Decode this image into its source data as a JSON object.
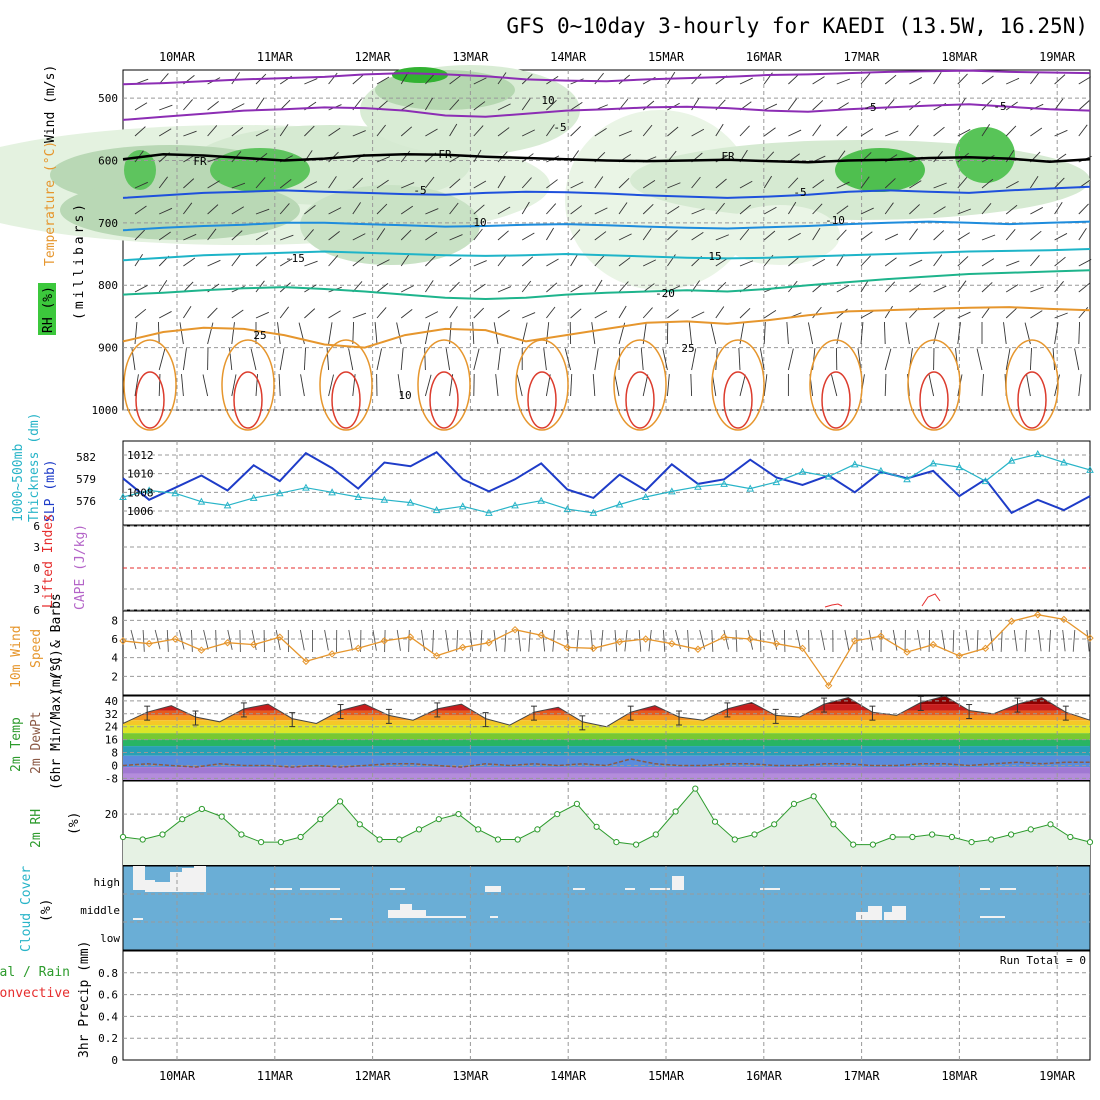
{
  "title": "GFS 0~10day 3-hourly for KAEDI (13.5W, 16.25N)",
  "dates": [
    "10MAR",
    "11MAR",
    "12MAR",
    "13MAR",
    "14MAR",
    "15MAR",
    "16MAR",
    "17MAR",
    "18MAR",
    "19MAR"
  ],
  "colors": {
    "rh_green": "#3cc83c",
    "slp": "#1e3cc8",
    "thickness": "#28b4c8",
    "wind10": "#e6962d",
    "rh2m": "#2d9b2d",
    "cloud_bg": "#6aaed6",
    "lifted": "#e62d2d",
    "cape": "#b464c8",
    "dewpt": "#8c5a46"
  },
  "panel_labels": {
    "upper_air": {
      "rh": "RH (%)",
      "temp": "Temperature (°C)",
      "wind": "Wind (m/s)",
      "units": "(millibars)"
    },
    "slp": {
      "thick": "1000~500mb",
      "thick2": "Thickness (dm)",
      "slp": "SLP (mb)"
    },
    "stability": {
      "li": "Lifted Index",
      "cape": "CAPE (J/kg)"
    },
    "wind10": {
      "l1": "10m Wind",
      "l2": "Speed",
      "l3": "(m/s) & Barbs"
    },
    "temp2m": {
      "l1": "2m Temp",
      "l2": "2m DewPt",
      "l3": "(6hr Min/Max) (°C)"
    },
    "rh2m": {
      "l1": "2m RH",
      "l2": "(%)"
    },
    "cloud": {
      "l1": "Cloud Cover",
      "l2": "(%)",
      "high": "high",
      "middle": "middle",
      "low": "low"
    },
    "precip": {
      "l1": "tal / Rain",
      "l2": "Convective",
      "l3": "3hr Precip (mm)",
      "run_total": "Run Total = 0"
    }
  },
  "chart_data": [
    {
      "type": "line",
      "title": "Upper air cross-section",
      "ylabel": "millibars",
      "yticks": [
        500,
        600,
        700,
        800,
        900,
        1000
      ],
      "ylim": [
        1000,
        455
      ],
      "isotherm_labels": [
        "10",
        "-5",
        "-5",
        "FR",
        "FR",
        "FR",
        "-5",
        "-5",
        "10",
        "-10",
        "-15",
        "15",
        "-20",
        "25",
        "25",
        "10",
        "-5"
      ],
      "isotherms": [
        {
          "t": -10,
          "p": [
            478,
            476,
            473,
            470,
            468,
            466,
            462,
            460,
            462,
            465,
            470,
            472,
            473,
            470,
            468,
            466,
            463,
            462,
            460,
            458,
            457,
            456,
            458,
            459,
            460
          ]
        },
        {
          "t": -5,
          "p": [
            535,
            530,
            525,
            520,
            518,
            515,
            516,
            520,
            528,
            530,
            525,
            520,
            518,
            515,
            514,
            516,
            520,
            522,
            518,
            515,
            512,
            510,
            514,
            518,
            520
          ]
        },
        {
          "t": 0,
          "p": [
            598,
            590,
            592,
            596,
            600,
            597,
            592,
            590,
            591,
            594,
            596,
            598,
            600,
            601,
            600,
            599,
            601,
            603,
            600,
            599,
            596,
            595,
            597,
            602,
            598
          ]
        },
        {
          "t": 5,
          "p": [
            660,
            656,
            652,
            650,
            648,
            650,
            652,
            654,
            655,
            652,
            650,
            651,
            653,
            656,
            658,
            660,
            658,
            655,
            650,
            648,
            650,
            652,
            648,
            645,
            642
          ]
        },
        {
          "t": 10,
          "p": [
            712,
            708,
            705,
            703,
            700,
            700,
            702,
            704,
            706,
            705,
            703,
            702,
            704,
            706,
            708,
            709,
            707,
            705,
            702,
            700,
            698,
            700,
            702,
            700,
            698
          ]
        },
        {
          "t": 15,
          "p": [
            760,
            756,
            752,
            750,
            748,
            746,
            748,
            750,
            752,
            753,
            752,
            750,
            752,
            754,
            756,
            757,
            756,
            754,
            752,
            750,
            748,
            746,
            745,
            744,
            742
          ]
        },
        {
          "t": 20,
          "p": [
            815,
            812,
            808,
            805,
            803,
            806,
            810,
            815,
            820,
            822,
            820,
            815,
            812,
            810,
            808,
            810,
            806,
            800,
            795,
            790,
            786,
            782,
            780,
            778,
            776
          ]
        },
        {
          "t": 25,
          "p": [
            890,
            875,
            868,
            870,
            880,
            895,
            900,
            880,
            870,
            872,
            890,
            880,
            870,
            860,
            858,
            862,
            856,
            848,
            842,
            840,
            838,
            836,
            835,
            838,
            840
          ]
        }
      ]
    },
    {
      "type": "line",
      "title": "SLP and 1000-500mb Thickness",
      "yticks_slp": [
        1006,
        1008,
        1010,
        1012
      ],
      "yticks_thick": [
        576,
        579,
        582
      ],
      "ylim_slp": [
        1004.5,
        1013.5
      ],
      "series": [
        {
          "name": "SLP (mb)",
          "values": [
            1009.5,
            1007.2,
            1008.5,
            1009.8,
            1008.2,
            1010.9,
            1009.2,
            1012.2,
            1010.6,
            1008.4,
            1011.2,
            1010.8,
            1012.3,
            1009.4,
            1008.1,
            1009.4,
            1011.1,
            1008.3,
            1007.4,
            1009.9,
            1008.2,
            1011.0,
            1008.9,
            1009.4,
            1011.5,
            1009.6,
            1008.8,
            1009.8,
            1008.0,
            1010.2,
            1009.5,
            1010.3,
            1007.6,
            1009.4,
            1005.8,
            1007.2,
            1006.1,
            1007.6
          ]
        },
        {
          "name": "1000~500mb Thickness (dm)",
          "values": [
            1007.5,
            1008.2,
            1007.9,
            1007.0,
            1006.6,
            1007.4,
            1007.9,
            1008.5,
            1008.0,
            1007.5,
            1007.2,
            1006.9,
            1006.1,
            1006.5,
            1005.8,
            1006.6,
            1007.1,
            1006.2,
            1005.8,
            1006.7,
            1007.5,
            1008.1,
            1008.6,
            1008.9,
            1008.4,
            1009.1,
            1010.2,
            1009.7,
            1011.0,
            1010.3,
            1009.4,
            1011.1,
            1010.7,
            1009.2,
            1011.4,
            1012.1,
            1011.2,
            1010.4
          ]
        }
      ]
    },
    {
      "type": "line",
      "title": "Lifted Index and CAPE",
      "yticks": [
        6,
        3,
        0,
        -3,
        -6
      ],
      "ylim": [
        6,
        -6
      ],
      "series": [
        {
          "name": "Lifted Index",
          "values": []
        },
        {
          "name": "CAPE (J/kg)",
          "values": []
        }
      ]
    },
    {
      "type": "line",
      "title": "10m Wind Speed",
      "ylabel": "(m/s)",
      "yticks": [
        2,
        4,
        6,
        8
      ],
      "ylim": [
        0,
        9
      ],
      "series": [
        {
          "name": "10m Wind Speed",
          "values": [
            5.8,
            5.5,
            6.0,
            4.8,
            5.6,
            5.4,
            6.2,
            3.6,
            4.4,
            5.0,
            5.8,
            6.2,
            4.2,
            5.1,
            5.6,
            7.0,
            6.4,
            5.1,
            5.0,
            5.7,
            6.0,
            5.5,
            4.9,
            6.2,
            6.0,
            5.5,
            5.0,
            1.0,
            5.8,
            6.3,
            4.6,
            5.4,
            4.2,
            5.0,
            7.9,
            8.6,
            8.1,
            6.1
          ]
        }
      ]
    },
    {
      "type": "area",
      "title": "2m Temp and 2m DewPt",
      "ylabel": "(°C)",
      "yticks": [
        -8,
        0,
        8,
        16,
        24,
        32,
        40
      ],
      "ylim": [
        -9,
        43
      ],
      "series": [
        {
          "name": "2m Temp",
          "values": [
            26,
            33,
            37,
            30,
            27,
            35,
            38,
            29,
            26,
            34,
            38,
            31,
            28,
            35,
            38,
            29,
            25,
            33,
            36,
            27,
            24,
            33,
            37,
            30,
            28,
            35,
            39,
            31,
            30,
            38,
            42,
            33,
            31,
            39,
            43,
            34,
            32,
            38,
            42,
            33,
            28
          ]
        },
        {
          "name": "2m DewPt",
          "values": [
            0,
            1,
            0,
            -1,
            1,
            0,
            0,
            -1,
            0,
            -1,
            0,
            1,
            1,
            0,
            -1,
            1,
            0,
            1,
            0,
            1,
            0,
            4,
            1,
            0,
            0,
            1,
            1,
            0,
            0,
            1,
            1,
            0,
            0,
            1,
            1,
            0,
            1,
            2,
            1,
            2,
            2
          ]
        }
      ]
    },
    {
      "type": "area",
      "title": "2m RH",
      "ylabel": "(%)",
      "yticks": [
        20
      ],
      "ylim": [
        0,
        33
      ],
      "series": [
        {
          "name": "2m RH",
          "values": [
            11,
            10,
            12,
            18,
            22,
            19,
            12,
            9,
            9,
            11,
            18,
            25,
            16,
            10,
            10,
            14,
            18,
            20,
            14,
            10,
            10,
            14,
            20,
            24,
            15,
            9,
            8,
            12,
            21,
            30,
            17,
            10,
            12,
            16,
            24,
            27,
            16,
            8,
            8,
            11,
            11,
            12,
            11,
            9,
            10,
            12,
            14,
            16,
            11,
            9
          ]
        }
      ]
    },
    {
      "type": "heatmap",
      "title": "Cloud Cover",
      "ylabel": "(%)",
      "levels": [
        "high",
        "middle",
        "low"
      ]
    },
    {
      "type": "bar",
      "title": "3hr Precip",
      "ylabel": "3hr Precip (mm)",
      "yticks": [
        0,
        0.2,
        0.4,
        0.6,
        0.8
      ],
      "ylim": [
        0,
        1.0
      ],
      "values": []
    }
  ]
}
